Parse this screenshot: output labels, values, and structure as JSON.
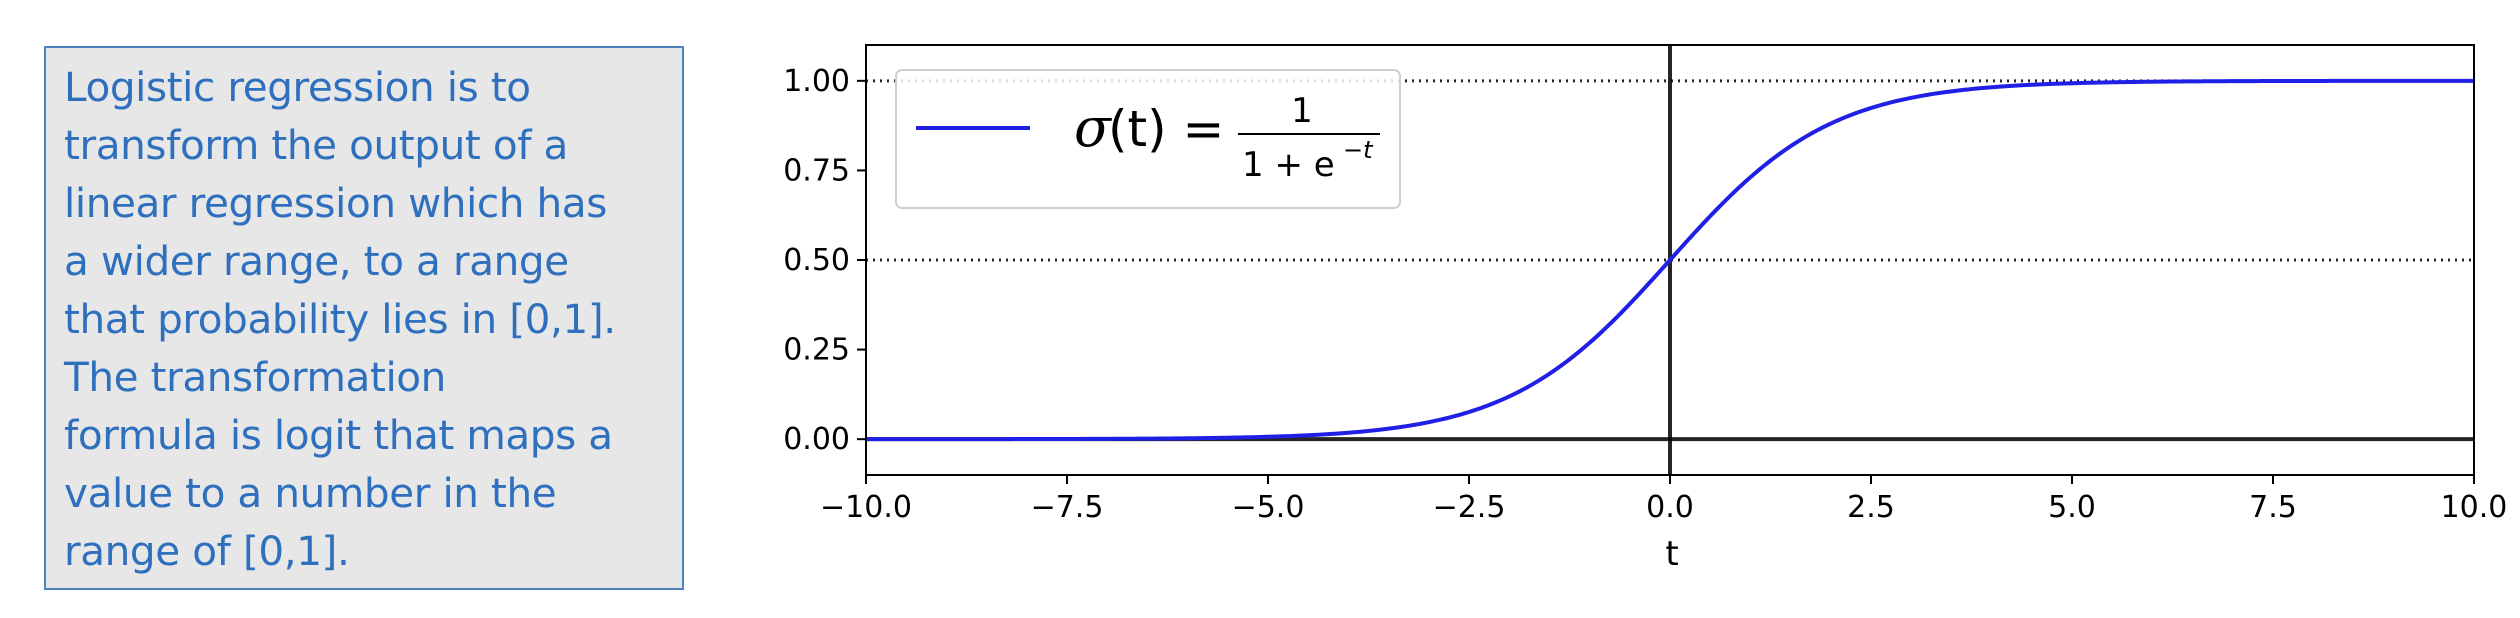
{
  "note": {
    "lines": [
      "Logistic regression is to",
      "transform the output of a",
      "linear regression which has",
      "a wider range, to a range",
      "that probability lies in [0,1].",
      "The transformation",
      "formula is logit that maps a",
      "value to a number in the",
      "range of [0,1]."
    ]
  },
  "chart_data": {
    "type": "line",
    "title": "",
    "xlabel": "t",
    "ylabel": "",
    "xlim": [
      -10.0,
      10.0
    ],
    "ylim": [
      -0.1,
      1.1
    ],
    "x_ticks": [
      -10.0,
      -7.5,
      -5.0,
      -2.5,
      0.0,
      2.5,
      5.0,
      7.5,
      10.0
    ],
    "x_tick_labels": [
      "−10.0",
      "−7.5",
      "−5.0",
      "−2.5",
      "0.0",
      "2.5",
      "5.0",
      "7.5",
      "10.0"
    ],
    "y_ticks": [
      0.0,
      0.25,
      0.5,
      0.75,
      1.0
    ],
    "y_tick_labels": [
      "0.00",
      "0.25",
      "0.50",
      "0.75",
      "1.00"
    ],
    "grid": false,
    "legend_position": "top-left",
    "series": [
      {
        "name": "σ(t) = 1 / (1 + e⁻ᵗ)",
        "color": "#1f1fe6",
        "function": "1/(1+exp(-t))",
        "x": [
          -10,
          -9,
          -8,
          -7,
          -6,
          -5,
          -4,
          -3,
          -2.5,
          -2,
          -1.5,
          -1,
          -0.5,
          0,
          0.5,
          1,
          1.5,
          2,
          2.5,
          3,
          4,
          5,
          6,
          7,
          8,
          9,
          10
        ],
        "y": [
          0.0,
          0.0001,
          0.0003,
          0.0009,
          0.0025,
          0.0067,
          0.018,
          0.0474,
          0.0759,
          0.1192,
          0.1824,
          0.2689,
          0.3775,
          0.5,
          0.6225,
          0.7311,
          0.8176,
          0.8808,
          0.9241,
          0.9526,
          0.982,
          0.9933,
          0.9975,
          0.9991,
          0.9997,
          0.9999,
          1.0
        ]
      }
    ],
    "reference_lines": [
      {
        "orientation": "horizontal",
        "value": 0.0,
        "style": "solid",
        "color": "#000000"
      },
      {
        "orientation": "horizontal",
        "value": 0.5,
        "style": "dotted",
        "color": "#000000"
      },
      {
        "orientation": "horizontal",
        "value": 1.0,
        "style": "dotted",
        "color": "#000000"
      },
      {
        "orientation": "vertical",
        "value": 0.0,
        "style": "solid",
        "color": "#000000"
      }
    ],
    "legend": {
      "sigma": "σ",
      "arg": "(t) =",
      "numerator": "1",
      "denominator_base": "1 + e",
      "denominator_exponent": "−t"
    }
  }
}
